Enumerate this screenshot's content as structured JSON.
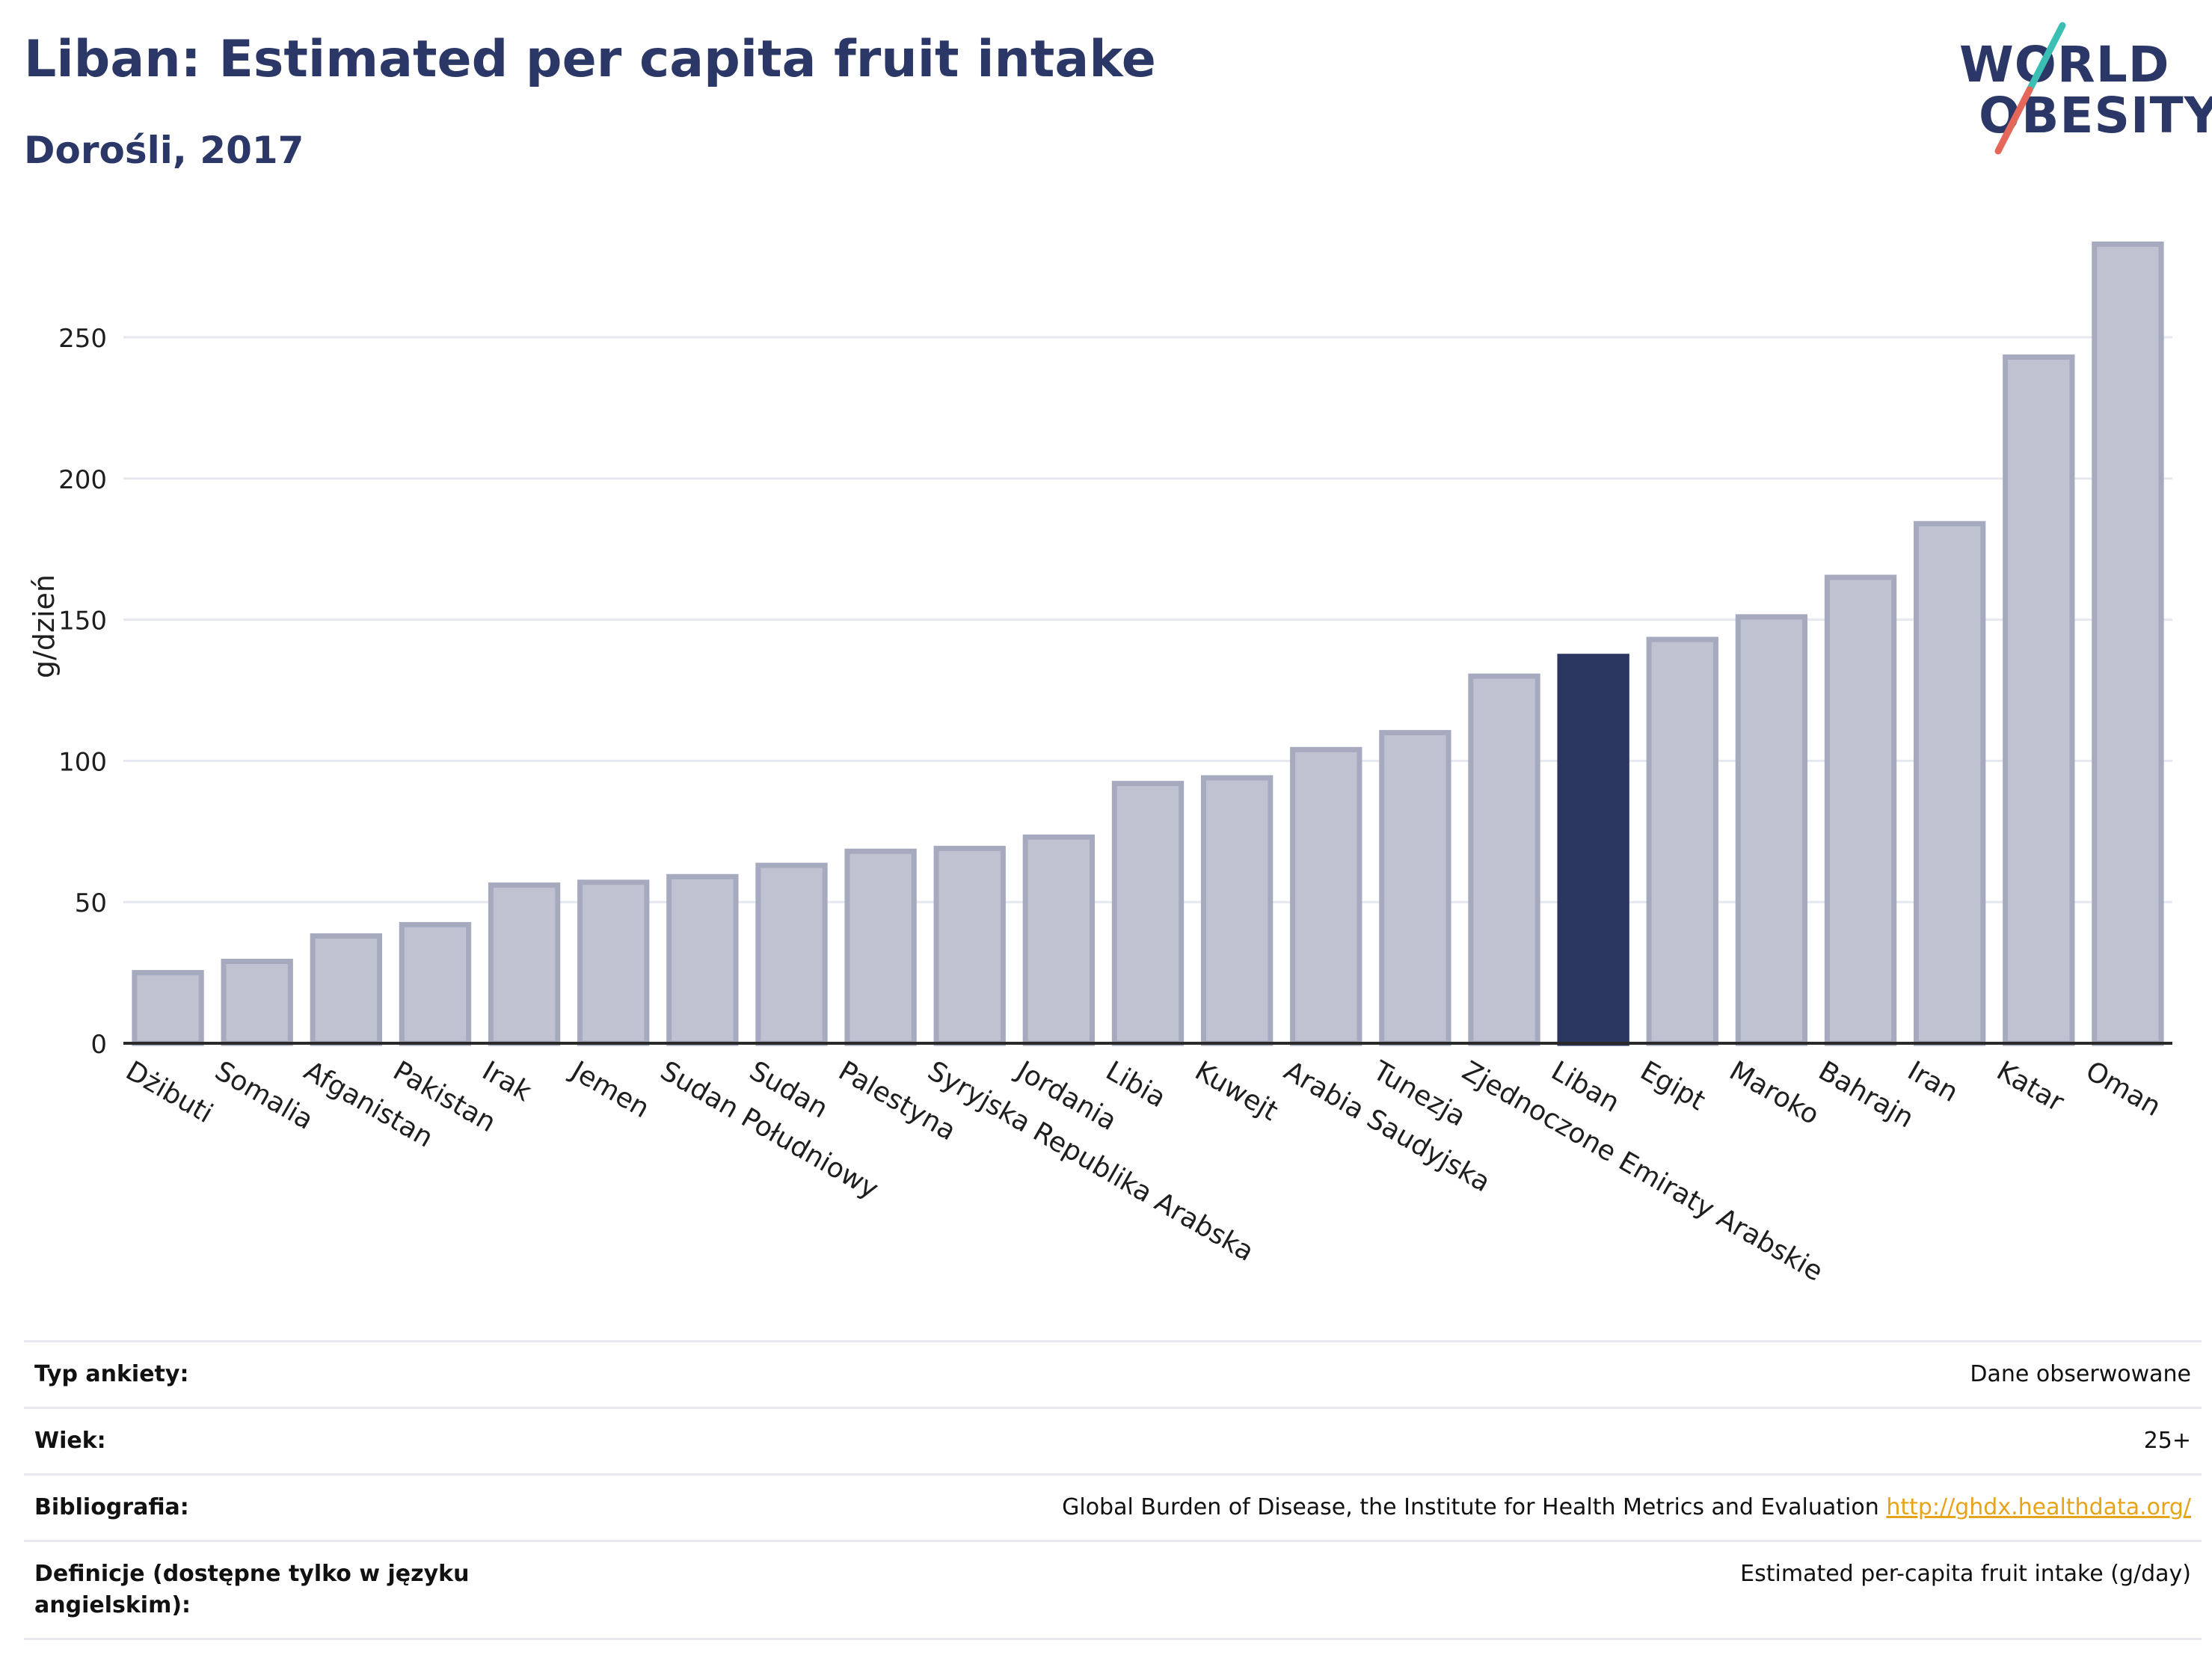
{
  "header": {
    "title": "Liban: Estimated per capita fruit intake",
    "subtitle": "Dorośli, 2017"
  },
  "logo": {
    "line1": "WORLD",
    "line2": "OBESITY",
    "colors": {
      "text": "#2b3766",
      "slash_top": "#3bbfb5",
      "slash_bottom": "#e5675a"
    }
  },
  "chart_data": {
    "type": "bar",
    "ylabel": "g/dzień",
    "xlabel": "",
    "ylim": [
      0,
      290
    ],
    "yticks": [
      0,
      50,
      100,
      150,
      200,
      250
    ],
    "grid": true,
    "highlight": "Liban",
    "colors": {
      "bar": "#bfc2d0",
      "bar_edge": "#a5aabf",
      "highlight": "#2b3761"
    },
    "categories": [
      "Dżibuti",
      "Somalia",
      "Afganistan",
      "Pakistan",
      "Irak",
      "Jemen",
      "Sudan Południowy",
      "Sudan",
      "Palestyna",
      "Syryjska Republika Arabska",
      "Jordania",
      "Libia",
      "Kuwejt",
      "Arabia Saudyjska",
      "Tunezja",
      "Zjednoczone Emiraty Arabskie",
      "Liban",
      "Egipt",
      "Maroko",
      "Bahrajn",
      "Iran",
      "Katar",
      "Oman"
    ],
    "values": [
      25,
      29,
      38,
      42,
      56,
      57,
      59,
      63,
      68,
      69,
      73,
      92,
      94,
      104,
      110,
      130,
      137,
      143,
      151,
      165,
      184,
      243,
      283
    ]
  },
  "info": [
    {
      "key": "Typ ankiety:",
      "value": "Dane obserwowane"
    },
    {
      "key": "Wiek:",
      "value": "25+"
    },
    {
      "key": "Bibliografia:",
      "value": "Global Burden of Disease, the Institute for Health Metrics and Evaluation",
      "link": "http://ghdx.healthdata.org/"
    },
    {
      "key": "Definicje (dostępne tylko w języku angielskim):",
      "value": "Estimated per-capita fruit intake (g/day)"
    }
  ]
}
